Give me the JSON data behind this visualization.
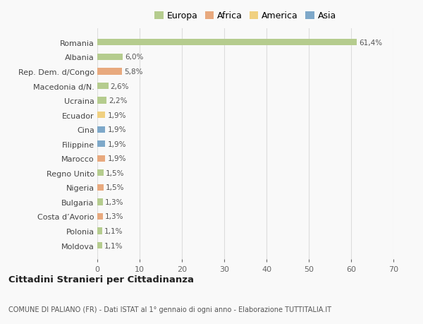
{
  "countries": [
    "Romania",
    "Albania",
    "Rep. Dem. d/Congo",
    "Macedonia d/N.",
    "Ucraina",
    "Ecuador",
    "Cina",
    "Filippine",
    "Marocco",
    "Regno Unito",
    "Nigeria",
    "Bulgaria",
    "Costa d’Avorio",
    "Polonia",
    "Moldova"
  ],
  "values": [
    61.4,
    6.0,
    5.8,
    2.6,
    2.2,
    1.9,
    1.9,
    1.9,
    1.9,
    1.5,
    1.5,
    1.3,
    1.3,
    1.1,
    1.1
  ],
  "labels": [
    "61,4%",
    "6,0%",
    "5,8%",
    "2,6%",
    "2,2%",
    "1,9%",
    "1,9%",
    "1,9%",
    "1,9%",
    "1,5%",
    "1,5%",
    "1,3%",
    "1,3%",
    "1,1%",
    "1,1%"
  ],
  "categories": [
    "Europa",
    "Europa",
    "Africa",
    "Europa",
    "Europa",
    "America",
    "Asia",
    "Asia",
    "Africa",
    "Europa",
    "Africa",
    "Europa",
    "Africa",
    "Europa",
    "Europa"
  ],
  "colors": {
    "Europa": "#b5cc8e",
    "Africa": "#e8a97e",
    "America": "#f0d080",
    "Asia": "#7ea8c9"
  },
  "legend_order": [
    "Europa",
    "Africa",
    "America",
    "Asia"
  ],
  "title": "Cittadini Stranieri per Cittadinanza",
  "subtitle": "COMUNE DI PALIANO (FR) - Dati ISTAT al 1° gennaio di ogni anno - Elaborazione TUTTITALIA.IT",
  "xlim": [
    0,
    70
  ],
  "xticks": [
    0,
    10,
    20,
    30,
    40,
    50,
    60,
    70
  ],
  "bg_color": "#f9f9f9",
  "grid_color": "#dddddd"
}
